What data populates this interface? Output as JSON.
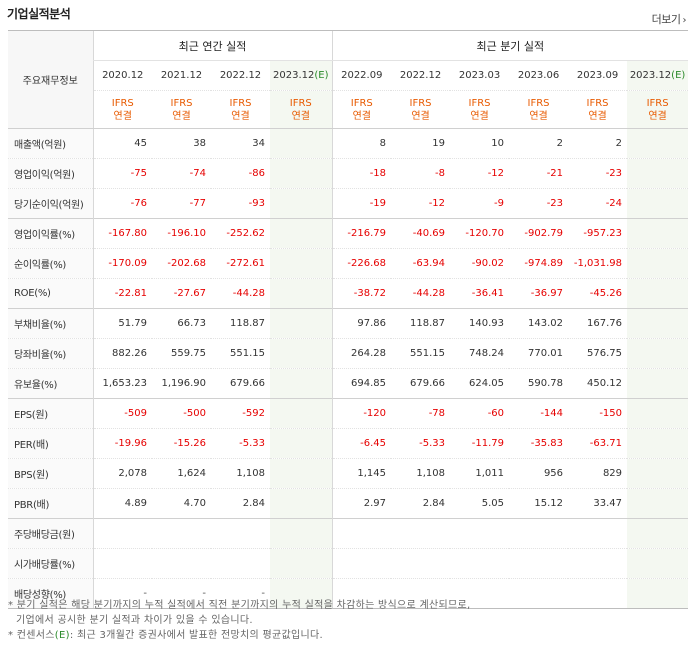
{
  "title": "기업실적분석",
  "more_label": "더보기",
  "more_icon": "chevron-right-icon",
  "colors": {
    "negative": "#e60000",
    "ifrs": "#e85a00",
    "estimate_bg": "#f4f8f1"
  },
  "header": {
    "row_label": "주요재무정보",
    "annual_group": "최근 연간 실적",
    "quarter_group": "최근 분기 실적",
    "annual_periods": [
      "2020.12",
      "2021.12",
      "2022.12",
      "2023.12"
    ],
    "quarter_periods": [
      "2022.09",
      "2022.12",
      "2023.03",
      "2023.06",
      "2023.09",
      "2023.12"
    ],
    "estimate_mark": "(E)",
    "ifrs_line1": "IFRS",
    "ifrs_line2": "연결"
  },
  "rows": [
    {
      "label": "매출액(억원)",
      "annual": [
        "45",
        "38",
        "34",
        ""
      ],
      "quarter": [
        "8",
        "19",
        "10",
        "2",
        "2",
        ""
      ]
    },
    {
      "label": "영업이익(억원)",
      "annual": [
        "-75",
        "-74",
        "-86",
        ""
      ],
      "quarter": [
        "-18",
        "-8",
        "-12",
        "-21",
        "-23",
        ""
      ]
    },
    {
      "label": "당기순이익(억원)",
      "annual": [
        "-76",
        "-77",
        "-93",
        ""
      ],
      "quarter": [
        "-19",
        "-12",
        "-9",
        "-23",
        "-24",
        ""
      ]
    },
    {
      "label": "영업이익률(%)",
      "annual": [
        "-167.80",
        "-196.10",
        "-252.62",
        ""
      ],
      "quarter": [
        "-216.79",
        "-40.69",
        "-120.70",
        "-902.79",
        "-957.23",
        ""
      ]
    },
    {
      "label": "순이익률(%)",
      "annual": [
        "-170.09",
        "-202.68",
        "-272.61",
        ""
      ],
      "quarter": [
        "-226.68",
        "-63.94",
        "-90.02",
        "-974.89",
        "-1,031.98",
        ""
      ]
    },
    {
      "label": "ROE(%)",
      "annual": [
        "-22.81",
        "-27.67",
        "-44.28",
        ""
      ],
      "quarter": [
        "-38.72",
        "-44.28",
        "-36.41",
        "-36.97",
        "-45.26",
        ""
      ]
    },
    {
      "label": "부채비율(%)",
      "annual": [
        "51.79",
        "66.73",
        "118.87",
        ""
      ],
      "quarter": [
        "97.86",
        "118.87",
        "140.93",
        "143.02",
        "167.76",
        ""
      ]
    },
    {
      "label": "당좌비율(%)",
      "annual": [
        "882.26",
        "559.75",
        "551.15",
        ""
      ],
      "quarter": [
        "264.28",
        "551.15",
        "748.24",
        "770.01",
        "576.75",
        ""
      ]
    },
    {
      "label": "유보율(%)",
      "annual": [
        "1,653.23",
        "1,196.90",
        "679.66",
        ""
      ],
      "quarter": [
        "694.85",
        "679.66",
        "624.05",
        "590.78",
        "450.12",
        ""
      ]
    },
    {
      "label": "EPS(원)",
      "annual": [
        "-509",
        "-500",
        "-592",
        ""
      ],
      "quarter": [
        "-120",
        "-78",
        "-60",
        "-144",
        "-150",
        ""
      ]
    },
    {
      "label": "PER(배)",
      "annual": [
        "-19.96",
        "-15.26",
        "-5.33",
        ""
      ],
      "quarter": [
        "-6.45",
        "-5.33",
        "-11.79",
        "-35.83",
        "-63.71",
        ""
      ]
    },
    {
      "label": "BPS(원)",
      "annual": [
        "2,078",
        "1,624",
        "1,108",
        ""
      ],
      "quarter": [
        "1,145",
        "1,108",
        "1,011",
        "956",
        "829",
        ""
      ]
    },
    {
      "label": "PBR(배)",
      "annual": [
        "4.89",
        "4.70",
        "2.84",
        ""
      ],
      "quarter": [
        "2.97",
        "2.84",
        "5.05",
        "15.12",
        "33.47",
        ""
      ]
    },
    {
      "label": "주당배당금(원)",
      "annual": [
        "",
        "",
        "",
        ""
      ],
      "quarter": [
        "",
        "",
        "",
        "",
        "",
        ""
      ]
    },
    {
      "label": "시가배당률(%)",
      "annual": [
        "",
        "",
        "",
        ""
      ],
      "quarter": [
        "",
        "",
        "",
        "",
        "",
        ""
      ]
    },
    {
      "label": "배당성향(%)",
      "annual": [
        "-",
        "-",
        "-",
        ""
      ],
      "quarter": [
        "",
        "",
        "",
        "",
        "",
        ""
      ]
    }
  ],
  "notes": [
    "* 분기 실적은 해당 분기까지의 누적 실적에서 직전 분기까지의 누적 실적을 차감하는 방식으로 계산되므로,",
    "기업에서 공시한 분기 실적과 차이가 있을 수 있습니다.",
    "* 컨센서스",
    ": 최근 3개월간 증권사에서 발표한 전망치의 평균값입니다."
  ]
}
